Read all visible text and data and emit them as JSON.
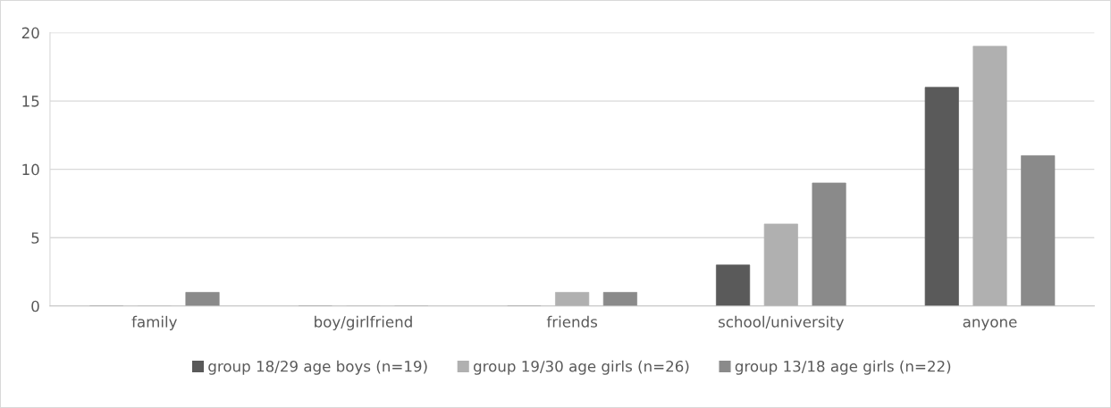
{
  "chart_data": {
    "type": "bar",
    "categories": [
      "family",
      "boy/girlfriend",
      "friends",
      "school/university",
      "anyone"
    ],
    "series": [
      {
        "name": "group 18/29 age boys (n=19)",
        "color": "#5a5a5a",
        "values": [
          0,
          0,
          0,
          3,
          16
        ]
      },
      {
        "name": "group 19/30 age girls (n=26)",
        "color": "#b0b0b0",
        "values": [
          0,
          0,
          1,
          6,
          19
        ]
      },
      {
        "name": "group 13/18 age girls (n=22)",
        "color": "#8a8a8a",
        "values": [
          1,
          0,
          1,
          9,
          11
        ]
      }
    ],
    "ylim": [
      0,
      20
    ],
    "yticks": [
      0,
      5,
      10,
      15,
      20
    ],
    "grid": "y",
    "legend": "bottom"
  }
}
